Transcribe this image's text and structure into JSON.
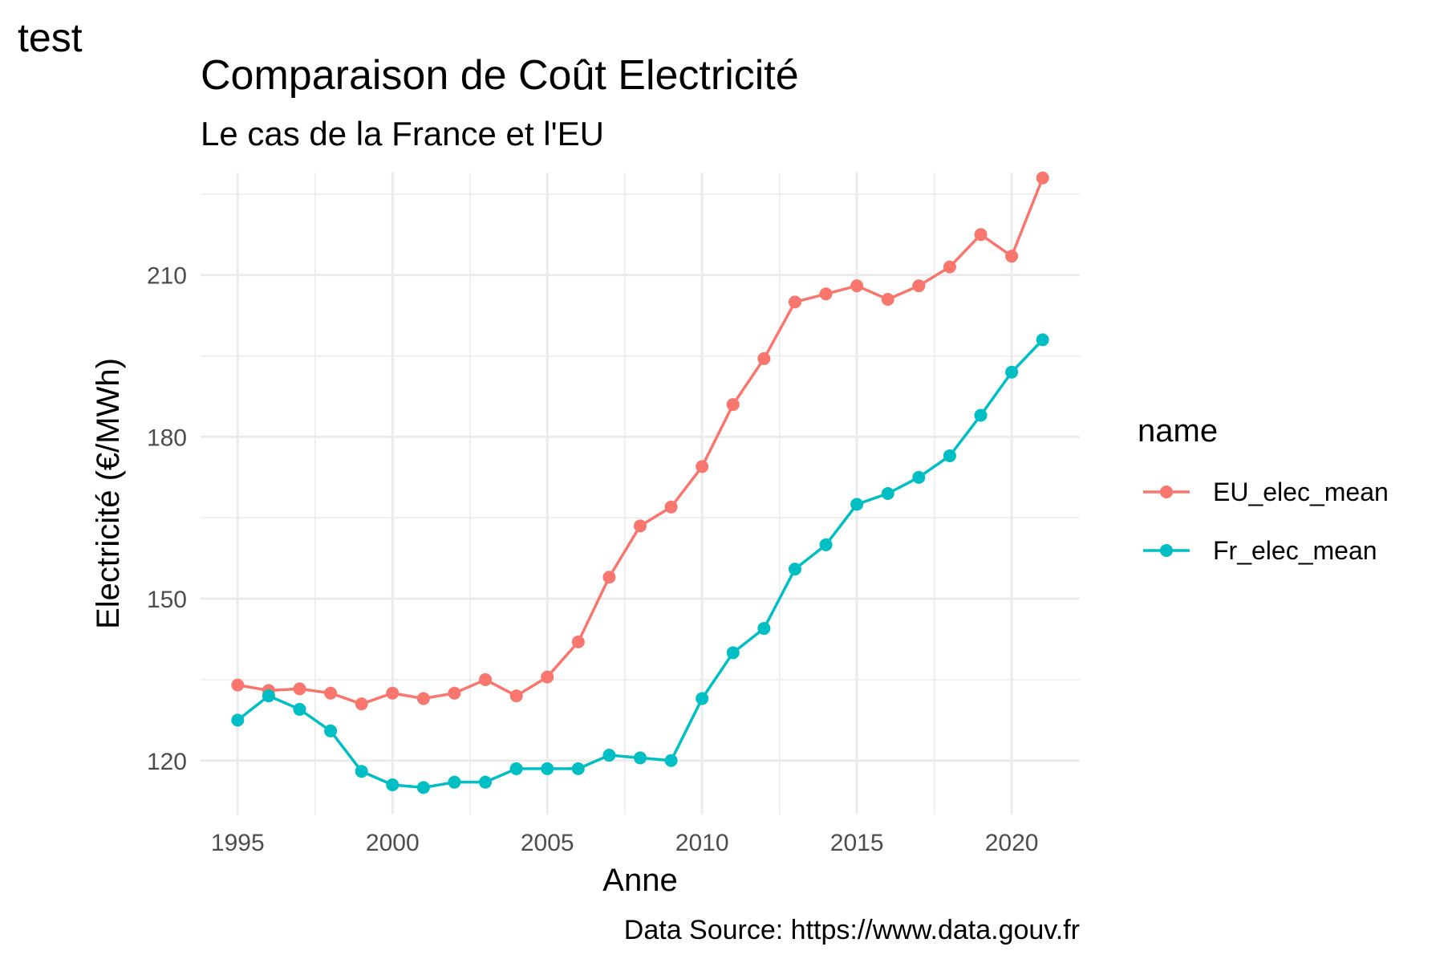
{
  "tag": "test",
  "chart_data": {
    "type": "line",
    "title": "Comparaison de Coût Electricité",
    "subtitle": "Le cas de la France et l'EU",
    "caption": "Data Source: https://www.data.gouv.fr",
    "xlabel": "Anne",
    "ylabel": "Electricité (€/MWh)",
    "x": [
      1995,
      1996,
      1997,
      1998,
      1999,
      2000,
      2001,
      2002,
      2003,
      2004,
      2005,
      2006,
      2007,
      2008,
      2009,
      2010,
      2011,
      2012,
      2013,
      2014,
      2015,
      2016,
      2017,
      2018,
      2019,
      2020,
      2021
    ],
    "xticks": [
      1995,
      2000,
      2005,
      2010,
      2015,
      2020
    ],
    "yticks": [
      120,
      150,
      180,
      210
    ],
    "xlim": [
      1993.8,
      2022.2
    ],
    "ylim": [
      110,
      229
    ],
    "grid": true,
    "legend_title": "name",
    "legend_position": "right",
    "series": [
      {
        "name": "EU_elec_mean",
        "color": "#F8766D",
        "values": [
          134,
          133,
          133.3,
          132.5,
          130.5,
          132.5,
          131.5,
          132.5,
          135,
          132,
          135.5,
          142,
          154,
          163.5,
          167,
          174.5,
          186,
          194.5,
          205,
          206.5,
          208,
          205.5,
          208,
          211.5,
          217.5,
          213.5,
          228
        ]
      },
      {
        "name": "Fr_elec_mean",
        "color": "#00BFC4",
        "values": [
          127.5,
          132,
          129.5,
          125.5,
          118,
          115.5,
          115,
          116,
          116,
          118.5,
          118.5,
          118.5,
          121,
          120.5,
          120,
          131.5,
          140,
          144.5,
          155.5,
          160,
          167.5,
          169.5,
          172.5,
          176.5,
          184,
          192,
          198
        ]
      }
    ]
  }
}
